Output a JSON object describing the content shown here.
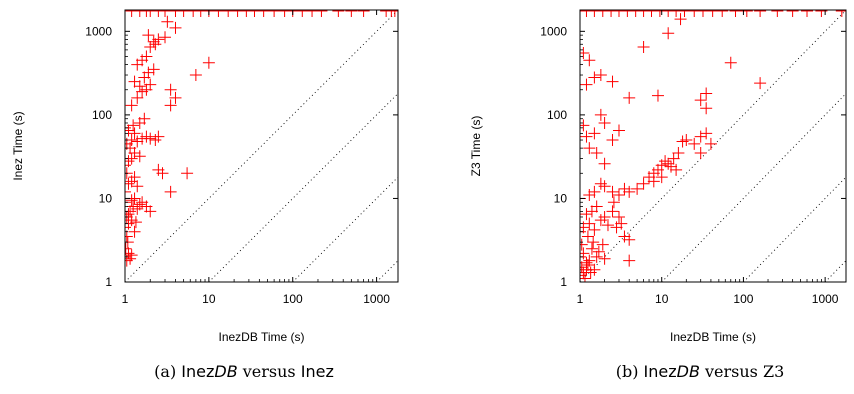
{
  "chart_data": [
    {
      "type": "scatter",
      "title": "",
      "xlabel": "InezDB Time (s)",
      "ylabel": "Inez Time (s)",
      "xscale": "log",
      "yscale": "log",
      "xlim": [
        1,
        1800
      ],
      "ylim": [
        1,
        1800
      ],
      "xticks": [
        "1",
        "10",
        "100",
        "1000"
      ],
      "yticks": [
        "1",
        "10",
        "100",
        "1000"
      ],
      "marker_color": "#ff0000",
      "marker": "plus",
      "reference_lines": "dotted diagonals y = x·10^k",
      "caption": {
        "prefix": "(a) ",
        "name1": "Inez",
        "name1_italic": "DB",
        "middle": " versus ",
        "name2": "Inez"
      },
      "points": [
        [
          1.0,
          2.0
        ],
        [
          1.05,
          1.8
        ],
        [
          1.1,
          2.2
        ],
        [
          1.02,
          2.5
        ],
        [
          1.15,
          1.9
        ],
        [
          1.2,
          2.1
        ],
        [
          1.08,
          3.0
        ],
        [
          1.0,
          4.5
        ],
        [
          1.1,
          5.0
        ],
        [
          1.2,
          5.5
        ],
        [
          1.05,
          6.0
        ],
        [
          1.3,
          4.0
        ],
        [
          1.15,
          7.0
        ],
        [
          1.25,
          8.0
        ],
        [
          1.0,
          9.0
        ],
        [
          1.1,
          6.5
        ],
        [
          1.35,
          5.2
        ],
        [
          1.4,
          7.5
        ],
        [
          1.5,
          8.5
        ],
        [
          1.2,
          9.5
        ],
        [
          1.05,
          3.5
        ],
        [
          1.3,
          10.0
        ],
        [
          1.6,
          9.0
        ],
        [
          1.8,
          8.0
        ],
        [
          2.0,
          7.0
        ],
        [
          1.0,
          12
        ],
        [
          1.1,
          15
        ],
        [
          1.2,
          16
        ],
        [
          1.3,
          18
        ],
        [
          1.05,
          20
        ],
        [
          1.4,
          14
        ],
        [
          1.0,
          25
        ],
        [
          1.1,
          28
        ],
        [
          1.2,
          30
        ],
        [
          1.3,
          35
        ],
        [
          1.5,
          32
        ],
        [
          1.15,
          40
        ],
        [
          1.05,
          45
        ],
        [
          1.2,
          50
        ],
        [
          1.4,
          48
        ],
        [
          1.6,
          52
        ],
        [
          1.8,
          55
        ],
        [
          2.0,
          52
        ],
        [
          2.3,
          50
        ],
        [
          2.5,
          55
        ],
        [
          1.3,
          60
        ],
        [
          1.1,
          65
        ],
        [
          1.0,
          70
        ],
        [
          1.25,
          75
        ],
        [
          1.5,
          80
        ],
        [
          1.7,
          90
        ],
        [
          2.5,
          22
        ],
        [
          2.8,
          20
        ],
        [
          3.5,
          12
        ],
        [
          5.5,
          20
        ],
        [
          1.2,
          130
        ],
        [
          1.4,
          160
        ],
        [
          1.6,
          190
        ],
        [
          1.8,
          200
        ],
        [
          1.5,
          220
        ],
        [
          2.0,
          230
        ],
        [
          1.3,
          250
        ],
        [
          1.7,
          280
        ],
        [
          1.9,
          320
        ],
        [
          2.2,
          350
        ],
        [
          1.4,
          400
        ],
        [
          1.6,
          450
        ],
        [
          1.8,
          500
        ],
        [
          2.0,
          650
        ],
        [
          2.2,
          750
        ],
        [
          2.5,
          800
        ],
        [
          3.0,
          850
        ],
        [
          1.9,
          900
        ],
        [
          2.3,
          700
        ],
        [
          3.5,
          200
        ],
        [
          4.0,
          160
        ],
        [
          3.5,
          130
        ],
        [
          7.0,
          300
        ],
        [
          10.0,
          420
        ],
        [
          4.0,
          1100
        ],
        [
          3.2,
          1300
        ],
        [
          1.2,
          1750
        ],
        [
          1.5,
          1750
        ],
        [
          1.8,
          1750
        ],
        [
          2.0,
          1750
        ],
        [
          2.5,
          1750
        ],
        [
          3.0,
          1750
        ],
        [
          4.0,
          1750
        ],
        [
          5.0,
          1750
        ],
        [
          6.5,
          1750
        ],
        [
          8.0,
          1750
        ],
        [
          10,
          1750
        ],
        [
          13,
          1750
        ],
        [
          17,
          1750
        ],
        [
          22,
          1750
        ],
        [
          28,
          1750
        ],
        [
          35,
          1750
        ],
        [
          45,
          1750
        ],
        [
          60,
          1750
        ],
        [
          80,
          1750
        ],
        [
          100,
          1750
        ],
        [
          130,
          1750
        ],
        [
          170,
          1750
        ],
        [
          220,
          1750
        ],
        [
          350,
          1750
        ],
        [
          500,
          1750
        ],
        [
          700,
          1750
        ],
        [
          1300,
          1750
        ],
        [
          1500,
          1750
        ],
        [
          1650,
          1750
        ]
      ]
    },
    {
      "type": "scatter",
      "title": "",
      "xlabel": "InezDB Time (s)",
      "ylabel": "Z3 Time (s)",
      "xscale": "log",
      "yscale": "log",
      "xlim": [
        1,
        1800
      ],
      "ylim": [
        1,
        1800
      ],
      "xticks": [
        "1",
        "10",
        "100",
        "1000"
      ],
      "yticks": [
        "1",
        "10",
        "100",
        "1000"
      ],
      "marker_color": "#ff0000",
      "marker": "plus",
      "reference_lines": "dotted diagonals y = x·10^k",
      "caption": {
        "prefix": "(b) ",
        "name1": "Inez",
        "name1_italic": "DB",
        "middle": " versus ",
        "name2": "Z3"
      },
      "points": [
        [
          1.0,
          1.2
        ],
        [
          1.1,
          1.3
        ],
        [
          1.2,
          1.4
        ],
        [
          1.05,
          1.5
        ],
        [
          1.15,
          1.1
        ],
        [
          1.25,
          1.6
        ],
        [
          1.3,
          1.8
        ],
        [
          1.0,
          2.0
        ],
        [
          1.1,
          2.2
        ],
        [
          1.4,
          2.5
        ],
        [
          1.2,
          1.7
        ],
        [
          1.35,
          1.3
        ],
        [
          1.5,
          1.4
        ],
        [
          1.6,
          2.0
        ],
        [
          1.05,
          2.8
        ],
        [
          1.45,
          3.0
        ],
        [
          1.7,
          2.3
        ],
        [
          2.0,
          1.9
        ],
        [
          1.25,
          3.5
        ],
        [
          1.9,
          2.8
        ],
        [
          1.0,
          4.0
        ],
        [
          1.1,
          4.5
        ],
        [
          1.3,
          5.0
        ],
        [
          1.5,
          4.2
        ],
        [
          1.8,
          5.5
        ],
        [
          2.0,
          6.0
        ],
        [
          2.2,
          4.8
        ],
        [
          1.2,
          6.5
        ],
        [
          1.4,
          7.0
        ],
        [
          1.6,
          8.0
        ],
        [
          2.5,
          7.0
        ],
        [
          3.0,
          6.0
        ],
        [
          3.5,
          3.5
        ],
        [
          4.0,
          3.2
        ],
        [
          4.0,
          1.8
        ],
        [
          2.8,
          4.5
        ],
        [
          3.2,
          5.0
        ],
        [
          2.6,
          9.0
        ],
        [
          1.0,
          10
        ],
        [
          1.3,
          11
        ],
        [
          1.5,
          12
        ],
        [
          1.8,
          15
        ],
        [
          2.0,
          14
        ],
        [
          2.5,
          12
        ],
        [
          3.0,
          11
        ],
        [
          3.5,
          13
        ],
        [
          4.0,
          12
        ],
        [
          5.0,
          13
        ],
        [
          6.0,
          15
        ],
        [
          7.0,
          18
        ],
        [
          8.0,
          20
        ],
        [
          9.0,
          22
        ],
        [
          10,
          25
        ],
        [
          12,
          26
        ],
        [
          13,
          24
        ],
        [
          15,
          22
        ],
        [
          11,
          28
        ],
        [
          14,
          30
        ],
        [
          10,
          18
        ],
        [
          8,
          16
        ],
        [
          16,
          35
        ],
        [
          18,
          48
        ],
        [
          20,
          50
        ],
        [
          25,
          45
        ],
        [
          30,
          55
        ],
        [
          35,
          60
        ],
        [
          30,
          35
        ],
        [
          40,
          45
        ],
        [
          35,
          120
        ],
        [
          30,
          150
        ],
        [
          35,
          180
        ],
        [
          2.0,
          26
        ],
        [
          1.6,
          35
        ],
        [
          1.3,
          40
        ],
        [
          2.5,
          50
        ],
        [
          1.2,
          55
        ],
        [
          1.5,
          60
        ],
        [
          1.1,
          75
        ],
        [
          2.0,
          80
        ],
        [
          3.0,
          65
        ],
        [
          1.8,
          100
        ],
        [
          4.0,
          160
        ],
        [
          9.0,
          170
        ],
        [
          1.2,
          230
        ],
        [
          1.5,
          280
        ],
        [
          1.8,
          300
        ],
        [
          2.5,
          250
        ],
        [
          1.3,
          450
        ],
        [
          1.1,
          550
        ],
        [
          6.0,
          650
        ],
        [
          70,
          420
        ],
        [
          160,
          240
        ],
        [
          12,
          950
        ],
        [
          17,
          1400
        ],
        [
          1.2,
          1750
        ],
        [
          1.5,
          1750
        ],
        [
          1.9,
          1750
        ],
        [
          2.4,
          1750
        ],
        [
          3.0,
          1750
        ],
        [
          3.8,
          1750
        ],
        [
          4.8,
          1750
        ],
        [
          6.0,
          1750
        ],
        [
          7.5,
          1750
        ],
        [
          9.5,
          1750
        ],
        [
          12,
          1750
        ],
        [
          15,
          1750
        ],
        [
          19,
          1750
        ],
        [
          25,
          1750
        ],
        [
          32,
          1750
        ],
        [
          42,
          1750
        ],
        [
          55,
          1750
        ],
        [
          80,
          1750
        ],
        [
          110,
          1750
        ],
        [
          160,
          1750
        ],
        [
          260,
          1750
        ],
        [
          400,
          1750
        ],
        [
          600,
          1750
        ],
        [
          900,
          1750
        ],
        [
          1600,
          1750
        ]
      ]
    }
  ]
}
